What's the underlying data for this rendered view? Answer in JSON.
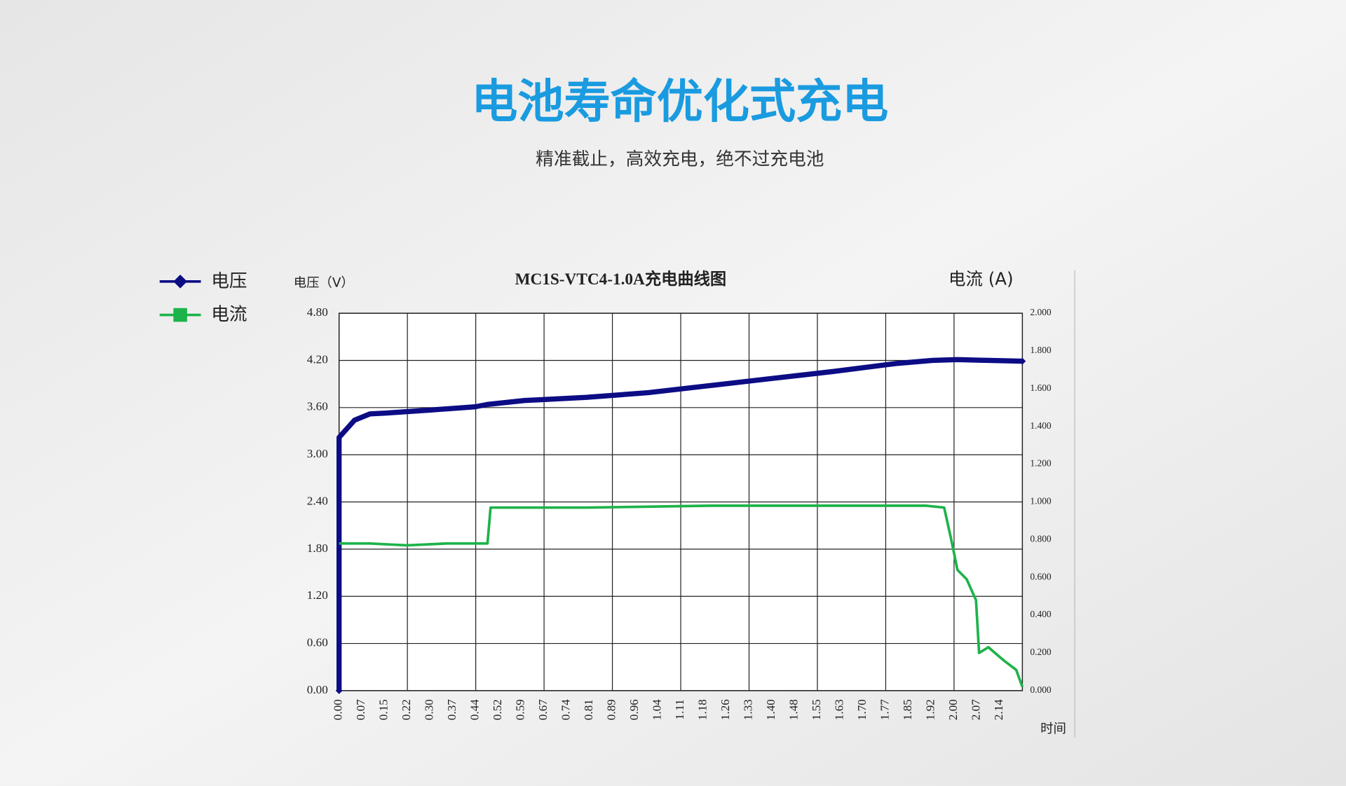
{
  "header": {
    "title": "电池寿命优化式充电",
    "subtitle": "精准截止，高效充电，绝不过充电池"
  },
  "chart_data": {
    "type": "line",
    "title": "MC1S-VTC4-1.0A充电曲线图",
    "y_label": "电压（V）",
    "y2_label": "电流  (A)",
    "x_label": "时间",
    "xlim": [
      0,
      2.21
    ],
    "ylim": [
      0,
      4.8
    ],
    "y2lim": [
      0,
      2.0
    ],
    "xticks": [
      {
        "value": 0,
        "label": "0.00"
      },
      0.07,
      0.15,
      0.22,
      {
        "value": 0.3,
        "label": "0.30"
      },
      0.37,
      0.44,
      0.52,
      0.59,
      0.67,
      0.74,
      0.81,
      0.89,
      0.96,
      1.04,
      1.11,
      1.18,
      1.26,
      1.33,
      {
        "value": 1.4,
        "label": "1.40"
      },
      1.48,
      1.55,
      1.63,
      {
        "value": 1.7,
        "label": "1.70"
      },
      1.77,
      1.85,
      1.92,
      {
        "value": 2,
        "label": "2.00"
      },
      2.07,
      2.14
    ],
    "yticks": [
      {
        "value": 0,
        "label": "0.00"
      },
      {
        "value": 0.6,
        "label": "0.60"
      },
      {
        "value": 1.2,
        "label": "1.20"
      },
      {
        "value": 1.8,
        "label": "1.80"
      },
      {
        "value": 2.4,
        "label": "2.40"
      },
      {
        "value": 3.0,
        "label": "3.00"
      },
      {
        "value": 3.6,
        "label": "3.60"
      },
      {
        "value": 4.2,
        "label": "4.20"
      },
      {
        "value": 4.8,
        "label": "4.80"
      }
    ],
    "y2ticks": [
      {
        "value": 0,
        "label": "0.000"
      },
      {
        "value": 0.2,
        "label": "0.200"
      },
      {
        "value": 0.4,
        "label": "0.400"
      },
      {
        "value": 0.6,
        "label": "0.600"
      },
      {
        "value": 0.8,
        "label": "0.800"
      },
      {
        "value": 1.0,
        "label": "1.000"
      },
      {
        "value": 1.2,
        "label": "1.200"
      },
      {
        "value": 1.4,
        "label": "1.400"
      },
      {
        "value": 1.6,
        "label": "1.600"
      },
      {
        "value": 1.8,
        "label": "1.800"
      },
      {
        "value": 2.0,
        "label": "2.000"
      }
    ],
    "grid": true,
    "legend": "left",
    "series": [
      {
        "name": "电压",
        "color": "#0c0c85",
        "marker": "diamond",
        "x": [
          0,
          0,
          0.05,
          0.1,
          0.15,
          0.3,
          0.44,
          0.48,
          0.6,
          0.8,
          1.0,
          1.2,
          1.4,
          1.6,
          1.8,
          1.92,
          2.0,
          2.1,
          2.21
        ],
        "values": [
          0,
          3.22,
          3.44,
          3.52,
          3.53,
          3.57,
          3.61,
          3.64,
          3.69,
          3.73,
          3.79,
          3.88,
          3.97,
          4.06,
          4.16,
          4.2,
          4.21,
          4.2,
          4.19
        ]
      },
      {
        "name": "电流",
        "color": "#1db34a",
        "marker": "square",
        "axis": "y2",
        "x": [
          0,
          0.1,
          0.22,
          0.35,
          0.48,
          0.49,
          0.8,
          1.2,
          1.6,
          1.9,
          1.957,
          1.98,
          2.0,
          2.03,
          2.06,
          2.07,
          2.1,
          2.15,
          2.19,
          2.21
        ],
        "values": [
          0.78,
          0.78,
          0.77,
          0.78,
          0.78,
          0.97,
          0.97,
          0.98,
          0.98,
          0.98,
          0.97,
          0.8,
          0.64,
          0.59,
          0.48,
          0.2,
          0.23,
          0.16,
          0.11,
          0.02
        ]
      }
    ]
  }
}
